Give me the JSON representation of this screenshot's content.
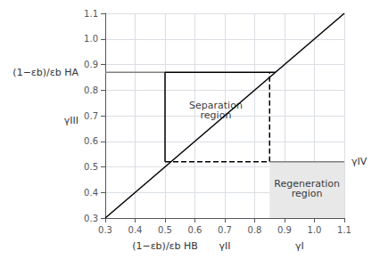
{
  "chart_data": {
    "type": "line",
    "xlim": [
      0.3,
      1.1
    ],
    "ylim": [
      0.3,
      1.1
    ],
    "xticks": [
      0.3,
      0.4,
      0.5,
      0.6,
      0.7,
      0.8,
      0.9,
      {
        "value": 1.0,
        "label": "1.0"
      },
      1.1
    ],
    "yticks": [
      0.3,
      0.4,
      0.5,
      0.6,
      0.7,
      0.8,
      0.9,
      {
        "value": 1.0,
        "label": "1.0"
      },
      1.1
    ],
    "grid": true,
    "series": [
      {
        "x": [
          0.3,
          1.1
        ],
        "values": [
          0.3,
          1.1
        ],
        "color": "#000000",
        "line_style": "solid"
      },
      {
        "x": [
          0.3,
          0.5
        ],
        "values": [
          0.87,
          0.87
        ],
        "color": "#808080",
        "line_style": "solid"
      },
      {
        "x": [
          0.5,
          0.5
        ],
        "values": [
          0.52,
          0.87
        ],
        "color": "#000000",
        "line_style": "solid"
      },
      {
        "x": [
          0.5,
          0.87
        ],
        "values": [
          0.87,
          0.87
        ],
        "color": "#000000",
        "line_style": "solid"
      },
      {
        "x": [
          0.5,
          0.85
        ],
        "values": [
          0.52,
          0.52
        ],
        "color": "#000000",
        "line_style": "dashed"
      },
      {
        "x": [
          0.85,
          0.85
        ],
        "values": [
          0.52,
          0.87
        ],
        "color": "#000000",
        "line_style": "dashed"
      },
      {
        "type": "area",
        "x": [
          0.85,
          1.1
        ],
        "values": [
          0.52,
          0.52
        ],
        "color": "#e8e8e8"
      },
      {
        "x": [
          0.85,
          1.1
        ],
        "values": [
          0.52,
          0.52
        ],
        "color": "#808080",
        "line_style": "solid"
      }
    ],
    "annotations": [
      {
        "text": "Separation\nregion",
        "x": 0.67,
        "y": 0.72
      },
      {
        "text": "Regeneration\nregion",
        "x": 0.975,
        "y": 0.415
      },
      {
        "text": "(1−εb)/εb HA",
        "x": 0.3,
        "y": 0.87
      },
      {
        "text": "γIII",
        "x": 0.3,
        "y": 0.68
      },
      {
        "text": "(1−εb)/εb HB",
        "x": 0.5,
        "y": 0.3
      },
      {
        "text": "γII",
        "x": 0.7,
        "y": 0.3
      },
      {
        "text": "γI",
        "x": 0.95,
        "y": 0.3
      },
      {
        "text": "γIV",
        "x": 1.1,
        "y": 0.52
      }
    ]
  }
}
